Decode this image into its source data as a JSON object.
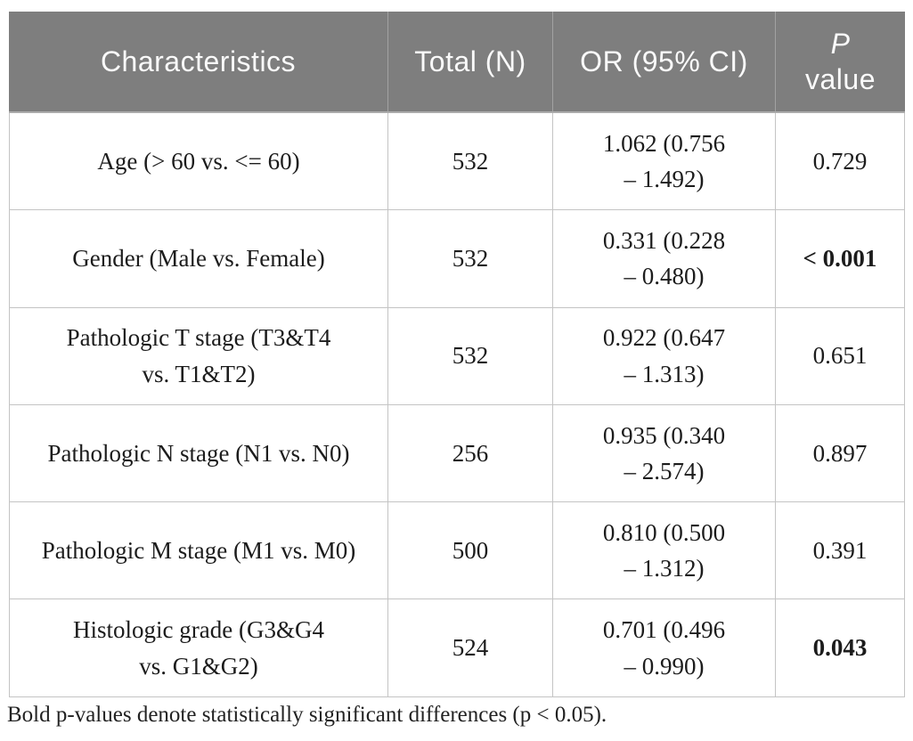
{
  "table": {
    "header": {
      "characteristics": "Characteristics",
      "total": "Total (N)",
      "or_ci": "OR (95% CI)",
      "p_line1": "P",
      "p_line2": "value"
    },
    "rows": [
      {
        "characteristic": {
          "line1": "Age (> 60 vs. <= 60)",
          "line2": ""
        },
        "total": "532",
        "or_ci": [
          "1.062 (0.756",
          "– 1.492)"
        ],
        "p_value": "0.729",
        "significant": false
      },
      {
        "characteristic": {
          "line1": "Gender (Male vs. Female)",
          "line2": ""
        },
        "total": "532",
        "or_ci": [
          "0.331 (0.228",
          "– 0.480)"
        ],
        "p_value": "< 0.001",
        "significant": true
      },
      {
        "characteristic": {
          "line1": "Pathologic T stage (T3&T4",
          "line2": "vs. T1&T2)"
        },
        "total": "532",
        "or_ci": [
          "0.922 (0.647",
          "– 1.313)"
        ],
        "p_value": "0.651",
        "significant": false
      },
      {
        "characteristic": {
          "line1": "Pathologic N stage (N1 vs. N0)",
          "line2": ""
        },
        "total": "256",
        "or_ci": [
          "0.935 (0.340",
          "– 2.574)"
        ],
        "p_value": "0.897",
        "significant": false
      },
      {
        "characteristic": {
          "line1": "Pathologic M stage (M1 vs. M0)",
          "line2": ""
        },
        "total": "500",
        "or_ci": [
          "0.810 (0.500",
          "– 1.312)"
        ],
        "p_value": "0.391",
        "significant": false
      },
      {
        "characteristic": {
          "line1": "Histologic grade (G3&G4",
          "line2": "vs. G1&G2)"
        },
        "total": "524",
        "or_ci": [
          "0.701 (0.496",
          "– 0.990)"
        ],
        "p_value": "0.043",
        "significant": true
      }
    ],
    "footnote": "Bold p-values denote statistically significant differences (p < 0.05)."
  },
  "colors": {
    "header_background": "#7e7e7e",
    "header_text": "#fafafa",
    "gridline": "#c4c4c4",
    "body_text": "#1c1c1c"
  }
}
